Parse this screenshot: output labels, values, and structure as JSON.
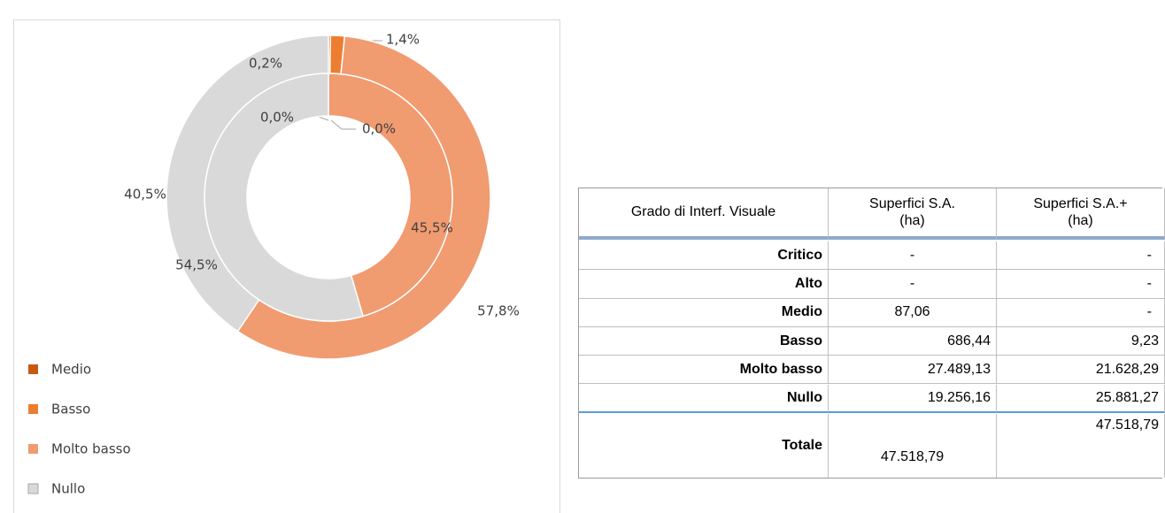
{
  "chart_data": {
    "type": "donut",
    "categories": [
      "Medio",
      "Basso",
      "Molto basso",
      "Nullo"
    ],
    "colors": [
      "#c55a11",
      "#ed7d31",
      "#f19b70",
      "#d9d9d9"
    ],
    "series": [
      {
        "values": [
          0.2,
          1.4,
          57.8,
          40.5
        ],
        "value_labels": [
          "0,2%",
          "1,4%",
          "57,8%",
          "40,5%"
        ]
      },
      {
        "values": [
          0.0,
          0.0,
          45.5,
          54.5
        ],
        "value_labels": [
          "0,0%",
          "0,0%",
          "45,5%",
          "54,5%"
        ]
      }
    ]
  },
  "table": {
    "header": [
      "Grado di Interf. Visuale",
      [
        "Superfici S.A.",
        "(ha)"
      ],
      [
        "Superfici S.A.+",
        "(ha)"
      ]
    ],
    "rows": [
      [
        "Critico",
        "-",
        "-"
      ],
      [
        "Alto",
        "-",
        "-"
      ],
      [
        "Medio",
        "87,06",
        "-"
      ],
      [
        "Basso",
        "686,44",
        "9,23"
      ],
      [
        "Molto basso",
        "27.489,13",
        "21.628,29"
      ],
      [
        "Nullo",
        "19.256,16",
        "25.881,27"
      ]
    ],
    "total": [
      "Totale",
      "47.518,79",
      "47.518,79"
    ]
  }
}
